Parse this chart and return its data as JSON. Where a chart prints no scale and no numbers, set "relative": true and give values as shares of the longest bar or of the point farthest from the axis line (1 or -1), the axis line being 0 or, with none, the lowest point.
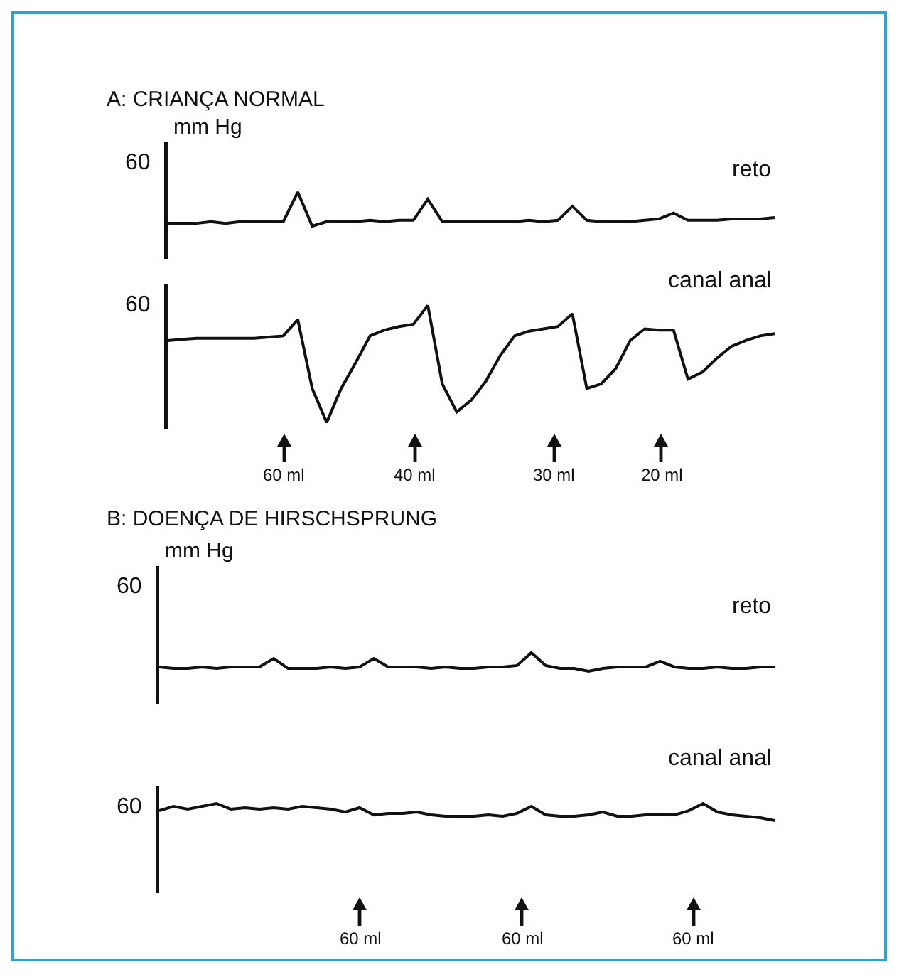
{
  "chart_data": [
    {
      "type": "line",
      "title": "A: CRIANÇA NORMAL",
      "ylabel": "mm Hg",
      "relative": true,
      "categories": [
        null,
        null,
        null,
        null,
        null,
        null,
        null,
        null,
        null,
        null,
        null,
        null,
        null,
        null,
        null,
        null,
        null,
        null,
        null,
        null,
        null,
        null,
        null,
        null,
        null,
        null,
        null,
        null,
        null,
        null,
        null,
        null,
        null,
        null,
        null,
        null,
        null,
        null,
        null,
        null,
        null,
        null,
        null
      ],
      "series": [
        {
          "name": "reto",
          "color": "#111111",
          "values": [
            0.08,
            0.08,
            0.08,
            0.13,
            0.08,
            0.13,
            0.13,
            0.13,
            0.13,
            1,
            0,
            0.13,
            0.13,
            0.13,
            0.17,
            0.13,
            0.17,
            0.17,
            0.79,
            0.13,
            0.13,
            0.13,
            0.13,
            0.13,
            0.13,
            0.17,
            0.13,
            0.17,
            0.58,
            0.17,
            0.13,
            0.13,
            0.13,
            0.17,
            0.21,
            0.38,
            0.17,
            0.17,
            0.17,
            0.21,
            0.21,
            0.21,
            0.25
          ]
        }
      ],
      "annotations": [
        "60"
      ]
    },
    {
      "type": "line",
      "relative": true,
      "categories": [
        null,
        null,
        null,
        null,
        null,
        null,
        null,
        null,
        null,
        null,
        null,
        null,
        null,
        null,
        null,
        null,
        null,
        null,
        null,
        null,
        null,
        null,
        null,
        null,
        null,
        null,
        null,
        null,
        null,
        null,
        null,
        null,
        null,
        null,
        null,
        null,
        null,
        null,
        null,
        null,
        null,
        null,
        null
      ],
      "series": [
        {
          "name": "canal anal",
          "color": "#111111",
          "values": [
            0.7,
            0.71,
            0.72,
            0.72,
            0.72,
            0.72,
            0.72,
            0.73,
            0.74,
            0.88,
            0.29,
            0,
            0.29,
            0.51,
            0.74,
            0.79,
            0.82,
            0.84,
            1,
            0.33,
            0.09,
            0.19,
            0.35,
            0.57,
            0.74,
            0.78,
            0.8,
            0.82,
            0.93,
            0.29,
            0.33,
            0.46,
            0.7,
            0.8,
            0.79,
            0.79,
            0.37,
            0.43,
            0.55,
            0.65,
            0.7,
            0.74,
            0.76
          ]
        }
      ],
      "annotations": [
        "60",
        "60 ml",
        "40 ml",
        "30 ml",
        "20 ml"
      ]
    },
    {
      "type": "line",
      "title": "B: DOENÇA DE HIRSCHSPRUNG",
      "ylabel": "mm Hg",
      "relative": true,
      "categories": [
        null,
        null,
        null,
        null,
        null,
        null,
        null,
        null,
        null,
        null,
        null,
        null,
        null,
        null,
        null,
        null,
        null,
        null,
        null,
        null,
        null,
        null,
        null,
        null,
        null,
        null,
        null,
        null,
        null,
        null,
        null,
        null,
        null,
        null,
        null,
        null,
        null,
        null,
        null,
        null,
        null,
        null,
        null,
        null
      ],
      "series": [
        {
          "name": "reto",
          "color": "#111111",
          "values": [
            0.23,
            0.15,
            0.15,
            0.23,
            0.15,
            0.23,
            0.23,
            0.23,
            0.69,
            0.15,
            0.15,
            0.15,
            0.23,
            0.15,
            0.23,
            0.69,
            0.23,
            0.23,
            0.23,
            0.15,
            0.23,
            0.15,
            0.15,
            0.23,
            0.23,
            0.31,
            1,
            0.31,
            0.15,
            0.15,
            0,
            0.15,
            0.23,
            0.23,
            0.23,
            0.54,
            0.23,
            0.15,
            0.15,
            0.23,
            0.15,
            0.15,
            0.23,
            0.23
          ]
        }
      ],
      "annotations": [
        "60"
      ]
    },
    {
      "type": "line",
      "relative": true,
      "categories": [
        null,
        null,
        null,
        null,
        null,
        null,
        null,
        null,
        null,
        null,
        null,
        null,
        null,
        null,
        null,
        null,
        null,
        null,
        null,
        null,
        null,
        null,
        null,
        null,
        null,
        null,
        null,
        null,
        null,
        null,
        null,
        null,
        null,
        null,
        null,
        null,
        null,
        null,
        null,
        null,
        null,
        null,
        null,
        null
      ],
      "series": [
        {
          "name": "canal anal",
          "color": "#111111",
          "values": [
            0.58,
            0.83,
            0.67,
            0.83,
            1,
            0.67,
            0.75,
            0.67,
            0.75,
            0.67,
            0.83,
            0.75,
            0.67,
            0.5,
            0.75,
            0.33,
            0.42,
            0.42,
            0.5,
            0.33,
            0.25,
            0.25,
            0.25,
            0.33,
            0.25,
            0.42,
            0.83,
            0.33,
            0.25,
            0.25,
            0.33,
            0.5,
            0.25,
            0.25,
            0.33,
            0.33,
            0.33,
            0.58,
            1,
            0.5,
            0.33,
            0.25,
            0.17,
            0
          ]
        }
      ],
      "annotations": [
        "60",
        "60 ml",
        "60 ml",
        "60 ml"
      ]
    }
  ]
}
